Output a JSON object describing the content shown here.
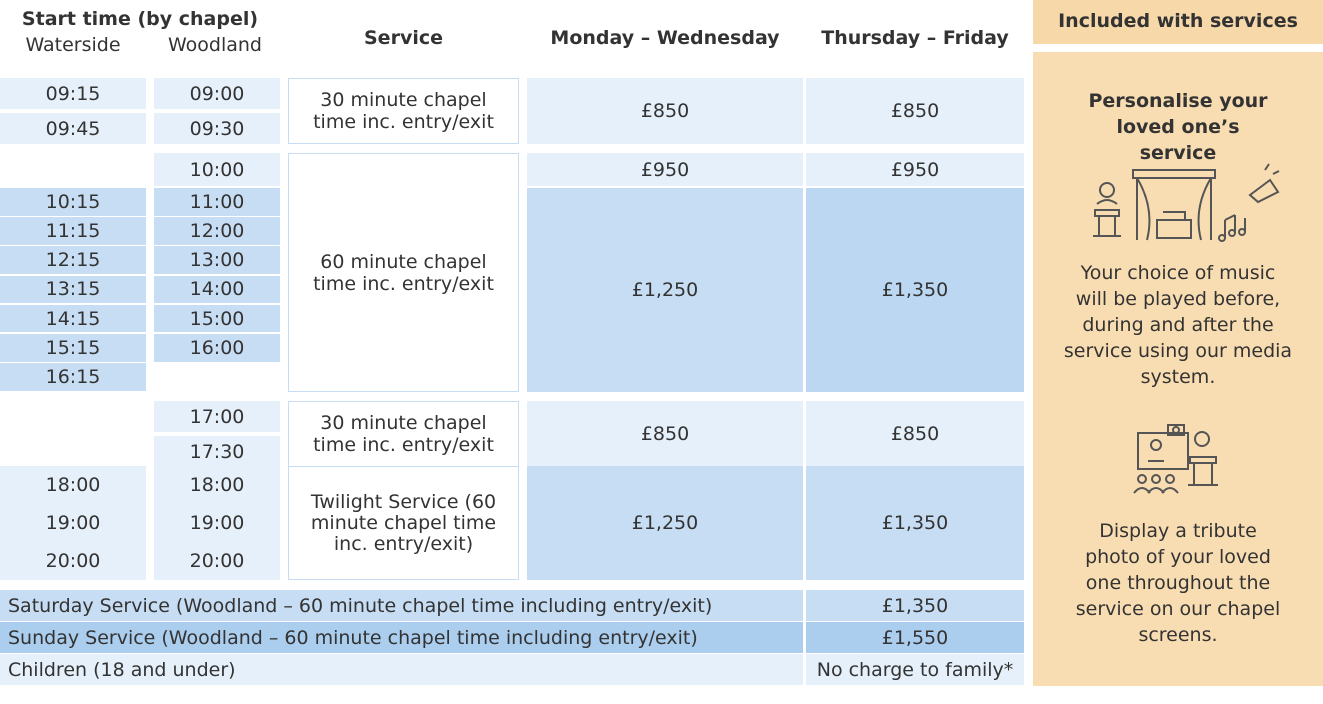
{
  "header": {
    "start_time": "Start time (by chapel)",
    "waterside": "Waterside",
    "woodland": "Woodland",
    "service": "Service",
    "mon_wed": "Monday – Wednesday",
    "thu_fri": "Thursday – Friday"
  },
  "groups": [
    {
      "waterside": [
        "09:15",
        "09:45"
      ],
      "woodland": [
        "09:00",
        "09:30"
      ],
      "service": "30 minute chapel time inc. entry/exit",
      "prices": [
        {
          "mon_wed": "£850",
          "thu_fri": "£850"
        }
      ]
    },
    {
      "waterside": [
        "10:15",
        "11:15",
        "12:15",
        "13:15",
        "14:15",
        "15:15",
        "16:15"
      ],
      "woodland": [
        "10:00",
        "11:00",
        "12:00",
        "13:00",
        "14:00",
        "15:00",
        "16:00"
      ],
      "service": "60 minute chapel time inc. entry/exit",
      "prices": [
        {
          "mon_wed": "£950",
          "thu_fri": "£950"
        },
        {
          "mon_wed": "£1,250",
          "thu_fri": "£1,350"
        }
      ]
    },
    {
      "waterside": [],
      "woodland": [
        "17:00",
        "17:30"
      ],
      "service": "30 minute chapel time inc. entry/exit",
      "prices": [
        {
          "mon_wed": "£850",
          "thu_fri": "£850"
        }
      ]
    },
    {
      "waterside": [
        "18:00",
        "19:00",
        "20:00"
      ],
      "woodland": [
        "18:00",
        "19:00",
        "20:00"
      ],
      "service": "Twilight Service (60 minute chapel time inc. entry/exit)",
      "prices": [
        {
          "mon_wed": "£1,250",
          "thu_fri": "£1,350"
        }
      ]
    }
  ],
  "extras": [
    {
      "label": "Saturday Service (Woodland – 60 minute chapel time including entry/exit)",
      "price": "£1,350"
    },
    {
      "label": "Sunday Service (Woodland – 60 minute chapel time including entry/exit)",
      "price": "£1,550"
    },
    {
      "label": "Children (18 and under)",
      "price": "No charge to family*"
    }
  ],
  "sidebar": {
    "title": "Included with services",
    "heading": "Personalise your loved one’s service",
    "music_text": "Your choice of music will be played before, during and after the service using our media system.",
    "photo_text": "Display a tribute photo of your loved one throughout the service on our chapel screens."
  }
}
